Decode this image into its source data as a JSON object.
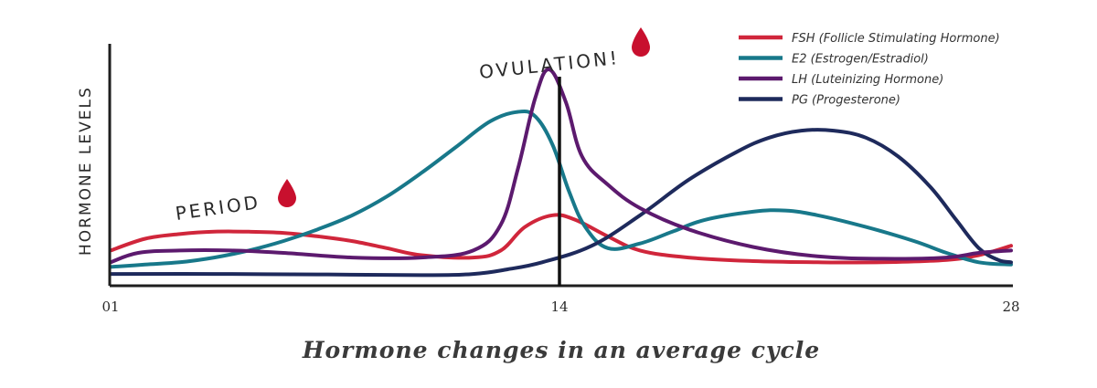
{
  "chart_data": {
    "type": "line",
    "title": "",
    "xlabel": "Hormone changes in an average cycle",
    "ylabel": "HORMONE LEVELS",
    "xlim": [
      1,
      28
    ],
    "ylim": [
      0,
      100
    ],
    "x_ticks": [
      {
        "value": 1,
        "label": "01"
      },
      {
        "value": 14,
        "label": "14"
      },
      {
        "value": 28,
        "label": "28"
      }
    ],
    "grid": false,
    "legend_position": "top-right",
    "marker_line": {
      "x": 14,
      "y_top": 107
    },
    "annotations": [
      {
        "id": "period",
        "text": "PERIOD",
        "x": 3.1,
        "y": 30,
        "icon": "blood-drop-icon"
      },
      {
        "id": "ovulation",
        "text": "OVULATION!",
        "x": 12.2,
        "y": 100,
        "icon": "blood-drop-icon"
      }
    ],
    "series": [
      {
        "name": "FSH (Follicle Stimulating Hormone)",
        "color": "#d0263b",
        "points": [
          [
            1,
            15
          ],
          [
            2,
            20
          ],
          [
            3,
            22
          ],
          [
            4,
            23
          ],
          [
            5,
            23
          ],
          [
            6,
            22.5
          ],
          [
            7,
            21
          ],
          [
            8,
            19
          ],
          [
            9,
            16
          ],
          [
            10,
            13
          ],
          [
            11.5,
            12
          ],
          [
            12.3,
            15
          ],
          [
            13,
            25
          ],
          [
            13.8,
            30
          ],
          [
            14.5,
            28
          ],
          [
            15.5,
            21
          ],
          [
            16.5,
            15
          ],
          [
            18,
            12
          ],
          [
            20,
            10.5
          ],
          [
            22,
            10
          ],
          [
            24,
            10
          ],
          [
            26,
            11
          ],
          [
            27,
            13
          ],
          [
            28,
            17
          ]
        ]
      },
      {
        "name": "E2 (Estrogen/Estradiol)",
        "color": "#18788a",
        "points": [
          [
            1,
            8
          ],
          [
            2,
            9
          ],
          [
            3,
            10
          ],
          [
            4,
            12
          ],
          [
            5,
            15
          ],
          [
            6,
            19
          ],
          [
            7,
            24
          ],
          [
            8,
            30
          ],
          [
            9,
            38
          ],
          [
            10,
            48
          ],
          [
            11,
            59
          ],
          [
            12,
            70
          ],
          [
            12.8,
            74
          ],
          [
            13.3,
            72
          ],
          [
            13.8,
            60
          ],
          [
            14.3,
            40
          ],
          [
            14.8,
            25
          ],
          [
            15.5,
            16
          ],
          [
            16.5,
            18
          ],
          [
            17.5,
            23
          ],
          [
            18.5,
            28
          ],
          [
            20,
            31.5
          ],
          [
            21,
            32
          ],
          [
            22,
            30
          ],
          [
            23.5,
            25
          ],
          [
            25,
            19
          ],
          [
            26,
            14
          ],
          [
            27,
            10
          ],
          [
            28,
            9
          ]
        ]
      },
      {
        "name": "LH (Luteinizing Hormone)",
        "color": "#5c1a6e",
        "points": [
          [
            1,
            10
          ],
          [
            1.8,
            14
          ],
          [
            3,
            15
          ],
          [
            4.5,
            15
          ],
          [
            6,
            14
          ],
          [
            8,
            12
          ],
          [
            10,
            12
          ],
          [
            11.5,
            15
          ],
          [
            12.3,
            26
          ],
          [
            12.8,
            50
          ],
          [
            13.3,
            80
          ],
          [
            13.7,
            92
          ],
          [
            14.2,
            78
          ],
          [
            14.7,
            55
          ],
          [
            15.5,
            43
          ],
          [
            16.5,
            33
          ],
          [
            18,
            24
          ],
          [
            20,
            16.5
          ],
          [
            22,
            12.5
          ],
          [
            24,
            11.5
          ],
          [
            26,
            12
          ],
          [
            27,
            14
          ],
          [
            28,
            15
          ]
        ]
      },
      {
        "name": "PG (Progesterone)",
        "color": "#1e2a5c",
        "points": [
          [
            1,
            5
          ],
          [
            4,
            5
          ],
          [
            7,
            4.8
          ],
          [
            10,
            4.5
          ],
          [
            11.5,
            5
          ],
          [
            12.5,
            7
          ],
          [
            13.5,
            10
          ],
          [
            15,
            17
          ],
          [
            16.5,
            30
          ],
          [
            18,
            45
          ],
          [
            19.5,
            57
          ],
          [
            20.5,
            63
          ],
          [
            21.5,
            66
          ],
          [
            22.5,
            66
          ],
          [
            23.5,
            63
          ],
          [
            24.5,
            55
          ],
          [
            25.5,
            42
          ],
          [
            26.3,
            28
          ],
          [
            27,
            16
          ],
          [
            27.6,
            11
          ],
          [
            28,
            10
          ]
        ]
      }
    ]
  }
}
